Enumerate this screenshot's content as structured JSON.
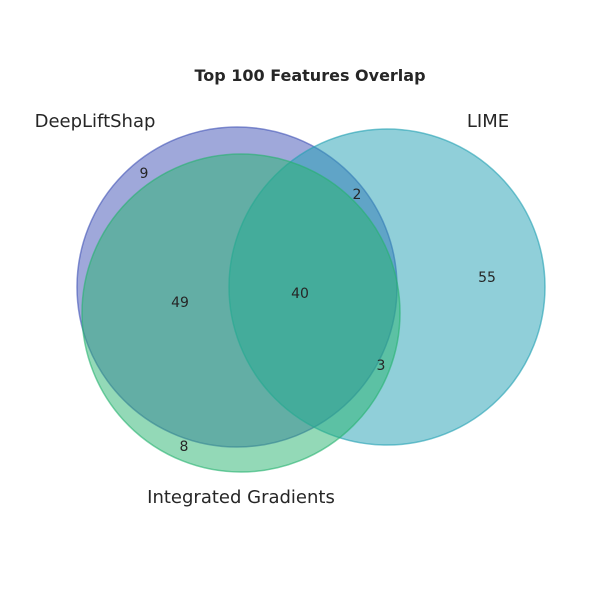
{
  "title": "Top 100 Features Overlap",
  "sets": [
    {
      "key": "deeplift",
      "name": "DeepLiftShap",
      "color": "#3f51b5"
    },
    {
      "key": "lime",
      "name": "LIME",
      "color": "#21a0b3"
    },
    {
      "key": "ig",
      "name": "Integrated Gradients",
      "color": "#27b36f"
    }
  ],
  "regions": {
    "deeplift_only": "9",
    "lime_only": "55",
    "ig_only": "8",
    "deeplift_lime": "2",
    "deeplift_ig": "49",
    "lime_ig": "3",
    "all_three": "40"
  }
}
